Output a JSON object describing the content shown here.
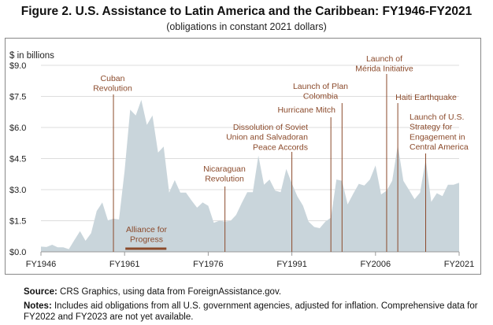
{
  "chart_data": {
    "type": "area",
    "title": "Figure 2. U.S. Assistance to Latin America and the Caribbean: FY1946-FY2021",
    "subtitle": "(obligations in constant 2021 dollars)",
    "ylabel": "$ in billions",
    "ylim": [
      0,
      9
    ],
    "yticks": [
      "$0.0",
      "$1.5",
      "$3.0",
      "$4.5",
      "$6.0",
      "$7.5",
      "$9.0"
    ],
    "xticks": [
      "FY1946",
      "FY1961",
      "FY1976",
      "FY1991",
      "FY2006",
      "FY2021"
    ],
    "grid": true,
    "fill_color": "#c9d5db",
    "annotation_color": "#8b4a2b",
    "x": [
      1946,
      1947,
      1948,
      1949,
      1950,
      1951,
      1952,
      1953,
      1954,
      1955,
      1956,
      1957,
      1958,
      1959,
      1960,
      1961,
      1962,
      1963,
      1964,
      1965,
      1966,
      1967,
      1968,
      1969,
      1970,
      1971,
      1972,
      1973,
      1974,
      1975,
      1976,
      1977,
      1978,
      1979,
      1980,
      1981,
      1982,
      1983,
      1984,
      1985,
      1986,
      1987,
      1988,
      1989,
      1990,
      1991,
      1992,
      1993,
      1994,
      1995,
      1996,
      1997,
      1998,
      1999,
      2000,
      2001,
      2002,
      2003,
      2004,
      2005,
      2006,
      2007,
      2008,
      2009,
      2010,
      2011,
      2012,
      2013,
      2014,
      2015,
      2016,
      2017,
      2018,
      2019,
      2020,
      2021
    ],
    "values": [
      0.25,
      0.23,
      0.34,
      0.22,
      0.22,
      0.13,
      0.57,
      1.0,
      0.53,
      0.9,
      1.97,
      2.38,
      1.52,
      1.6,
      1.56,
      3.9,
      6.86,
      6.58,
      7.33,
      6.12,
      6.58,
      4.79,
      5.08,
      2.86,
      3.46,
      2.86,
      2.86,
      2.48,
      2.13,
      2.38,
      2.22,
      1.4,
      1.5,
      1.46,
      1.49,
      1.78,
      2.35,
      2.88,
      2.88,
      4.64,
      3.24,
      3.49,
      2.95,
      2.88,
      4.0,
      3.3,
      2.67,
      2.22,
      1.46,
      1.2,
      1.14,
      1.46,
      1.65,
      3.49,
      3.43,
      2.29,
      2.8,
      3.28,
      3.2,
      3.49,
      4.17,
      2.77,
      2.95,
      3.43,
      5.15,
      3.43,
      2.99,
      2.54,
      2.86,
      4.45,
      2.41,
      2.83,
      2.69,
      3.24,
      3.24,
      3.33
    ],
    "events": [
      {
        "year": 1959,
        "lines": [
          "Cuban",
          "Revolution"
        ]
      },
      {
        "year": 1979,
        "lines": [
          "Nicaraguan",
          "Revolution"
        ]
      },
      {
        "year": 1991,
        "lines": [
          "Dissolution of Soviet",
          "Union and Salvadoran",
          "Peace Accords"
        ]
      },
      {
        "year": 1998,
        "lines": [
          "Hurricane Mitch"
        ]
      },
      {
        "year": 2000,
        "lines": [
          "Launch of Plan",
          "Colombia"
        ]
      },
      {
        "year": 2008,
        "lines": [
          "Launch of",
          "Mérida Initiative"
        ]
      },
      {
        "year": 2010,
        "lines": [
          "Haiti Earthquake"
        ]
      },
      {
        "year": 2015,
        "lines": [
          "Launch of U.S.",
          "Strategy for",
          "Engagement in",
          "Central America"
        ]
      }
    ],
    "period": {
      "start": 1961,
      "end": 1968.5,
      "lines": [
        "Alliance for",
        "Progress"
      ]
    }
  },
  "footer": {
    "source_label": "Source:",
    "source_text": " CRS Graphics, using data from ForeignAssistance.gov.",
    "notes_label": "Notes:",
    "notes_text": " Includes aid obligations from all U.S. government agencies, adjusted for inflation. Comprehensive data for FY2022 and FY2023 are not yet available."
  }
}
